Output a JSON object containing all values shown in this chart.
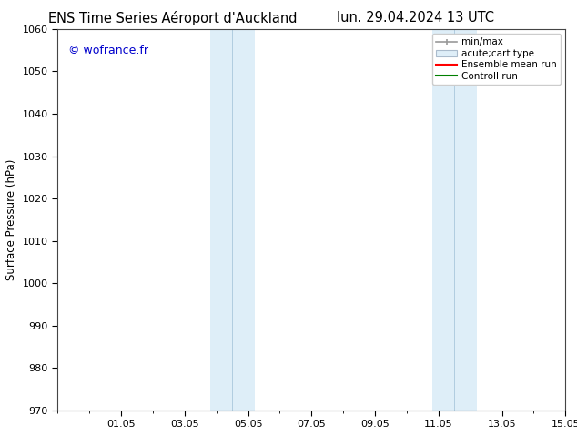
{
  "title_left": "ENS Time Series Aéroport d'Auckland",
  "title_right": "lun. 29.04.2024 13 UTC",
  "ylabel": "Surface Pressure (hPa)",
  "ylim": [
    970,
    1060
  ],
  "yticks": [
    970,
    980,
    990,
    1000,
    1010,
    1020,
    1030,
    1040,
    1050,
    1060
  ],
  "xtick_labels": [
    "01.05",
    "03.05",
    "05.05",
    "07.05",
    "09.05",
    "11.05",
    "13.05",
    "15.05"
  ],
  "xtick_positions": [
    2,
    4,
    6,
    8,
    10,
    12,
    14,
    16
  ],
  "total_days": 16,
  "shaded_bands": [
    {
      "x_start": 4.8,
      "x_end": 5.5,
      "color": "#deeef8"
    },
    {
      "x_start": 5.5,
      "x_end": 6.2,
      "color": "#deeef8"
    },
    {
      "x_start": 11.8,
      "x_end": 12.5,
      "color": "#deeef8"
    },
    {
      "x_start": 12.5,
      "x_end": 13.2,
      "color": "#deeef8"
    }
  ],
  "divider_lines": [
    5.5,
    12.5
  ],
  "watermark_text": "© wofrance.fr",
  "watermark_color": "#0000cc",
  "background_color": "#ffffff",
  "title_fontsize": 10.5,
  "axis_fontsize": 8.5,
  "tick_fontsize": 8,
  "legend_fontsize": 7.5
}
